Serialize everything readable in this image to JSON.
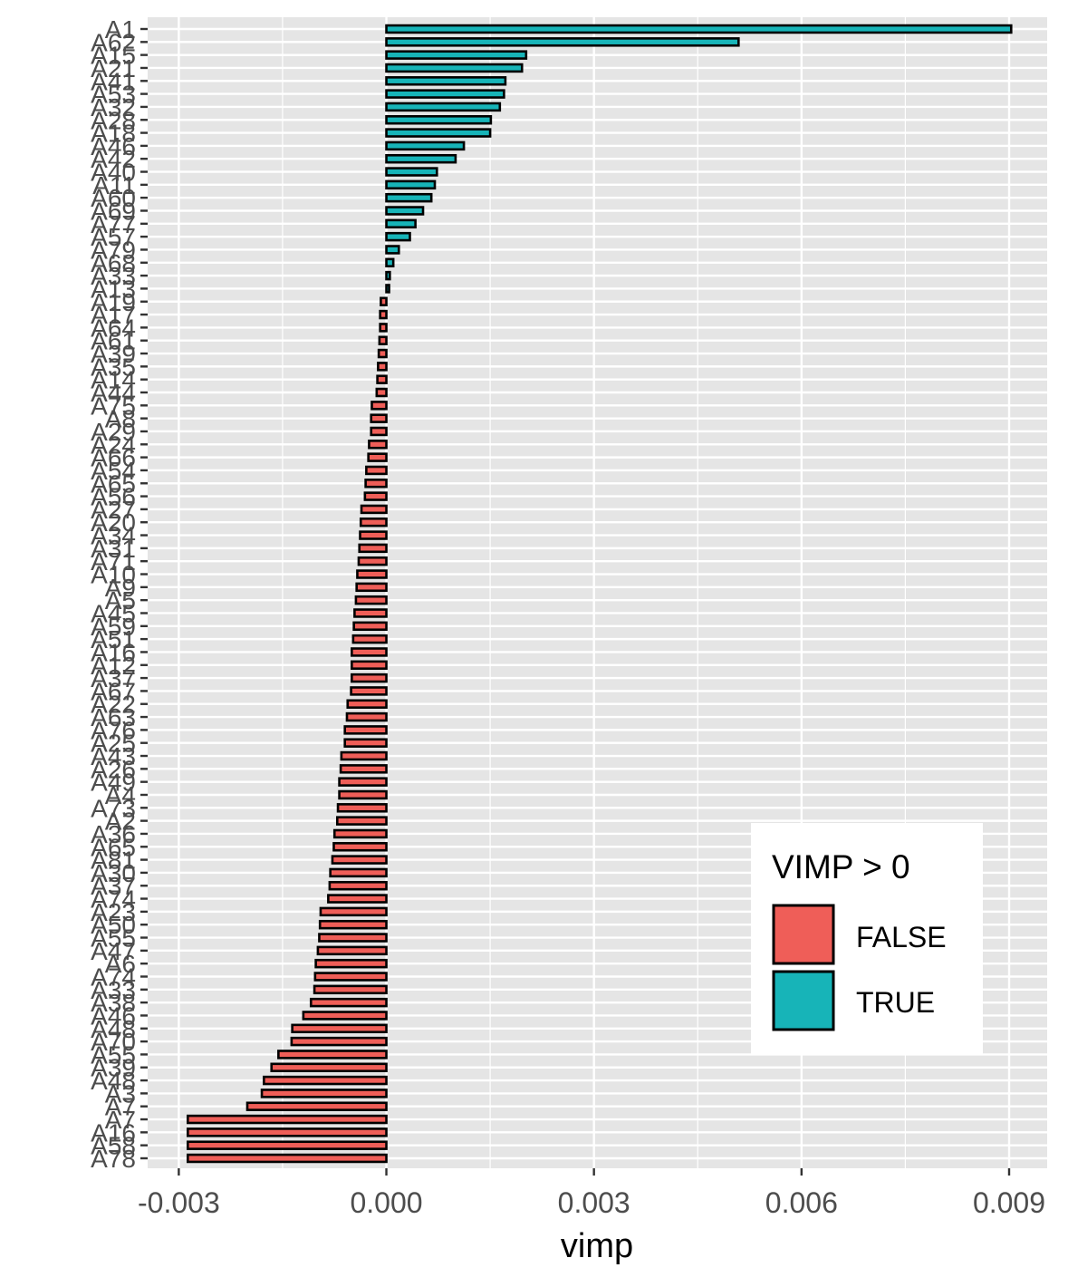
{
  "chart_data": {
    "type": "bar",
    "orientation": "horizontal",
    "xlabel": "vimp",
    "ylabel": "",
    "xlim": [
      -0.00345,
      0.00955
    ],
    "x_ticks": [
      {
        "value": -0.003,
        "label": "-0.003"
      },
      {
        "value": 0.0,
        "label": "0.000"
      },
      {
        "value": 0.003,
        "label": "0.003"
      },
      {
        "value": 0.006,
        "label": "0.006"
      },
      {
        "value": 0.009,
        "label": "0.009"
      }
    ],
    "grid": true,
    "legend": {
      "title": "VIMP > 0",
      "placement": "bottom-right inside",
      "entries": [
        {
          "label": "FALSE",
          "color": "#F8766D"
        },
        {
          "label": "TRUE",
          "color": "#00BFC4"
        }
      ]
    },
    "colors": {
      "TRUE": "#17B4B8",
      "FALSE": "#EF5E58",
      "panel": "#E5E5E5",
      "grid": "#FFFFFF"
    },
    "categories": [
      "A1",
      "A62",
      "A15",
      "A21",
      "A41",
      "A53",
      "A32",
      "A28",
      "A18",
      "A46",
      "A42",
      "A40",
      "A11",
      "A60",
      "A69",
      "A77",
      "A57",
      "A79",
      "A68",
      "A33",
      "A13",
      "A19",
      "A17",
      "A64",
      "A61",
      "A39",
      "A35",
      "A14",
      "A44",
      "A75",
      "A8",
      "A29",
      "A24",
      "A66",
      "A54",
      "A65",
      "A56",
      "A27",
      "A20",
      "A34",
      "A31",
      "A71",
      "A10",
      "A9",
      "A5",
      "A45",
      "A59",
      "A51",
      "A16",
      "A12",
      "A37",
      "A67",
      "A22",
      "A63",
      "A76",
      "A25",
      "A43",
      "A26",
      "A49",
      "A4",
      "A73",
      "A2",
      "A36",
      "A65",
      "A81",
      "A30",
      "A37",
      "A74",
      "A23",
      "A50",
      "A55",
      "A47",
      "A6",
      "A74",
      "A33",
      "A38",
      "A46",
      "A48",
      "A70",
      "A55",
      "A39",
      "A48",
      "A3",
      "A7",
      "A7",
      "A16",
      "A58",
      "A78"
    ],
    "values": [
      0.00903,
      0.00509,
      0.00202,
      0.00196,
      0.00172,
      0.0017,
      0.00164,
      0.00151,
      0.0015,
      0.00112,
      0.001,
      0.00073,
      0.0007,
      0.00065,
      0.00053,
      0.00042,
      0.00034,
      0.00018,
      0.0001,
      5e-05,
      2e-05,
      -8e-05,
      -9e-05,
      -9e-05,
      -0.0001,
      -0.00011,
      -0.00012,
      -0.00013,
      -0.00014,
      -0.00021,
      -0.00022,
      -0.00022,
      -0.00025,
      -0.00026,
      -0.00029,
      -0.0003,
      -0.00031,
      -0.00036,
      -0.00037,
      -0.00038,
      -0.00039,
      -0.0004,
      -0.00042,
      -0.00043,
      -0.00044,
      -0.00046,
      -0.00047,
      -0.00048,
      -0.0005,
      -0.0005,
      -0.0005,
      -0.00051,
      -0.00056,
      -0.00057,
      -0.0006,
      -0.0006,
      -0.00065,
      -0.00066,
      -0.00068,
      -0.00068,
      -0.0007,
      -0.00071,
      -0.00075,
      -0.00076,
      -0.00078,
      -0.00081,
      -0.00082,
      -0.00084,
      -0.00095,
      -0.00096,
      -0.00097,
      -0.00099,
      -0.00102,
      -0.00103,
      -0.00104,
      -0.00109,
      -0.0012,
      -0.00136,
      -0.00137,
      -0.00156,
      -0.00166,
      -0.00177,
      -0.0018,
      -0.00201,
      -0.00287,
      -0.00287,
      -0.00287,
      -0.00287
    ]
  }
}
